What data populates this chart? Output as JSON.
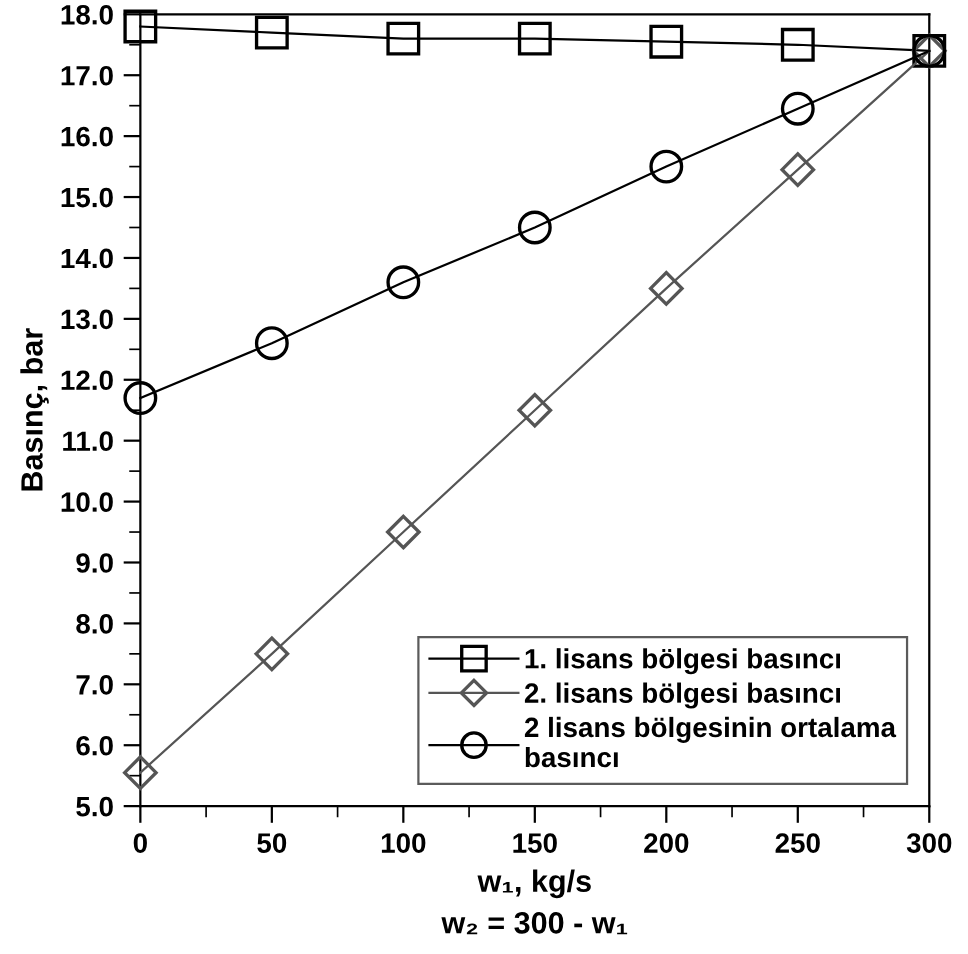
{
  "chart_data": {
    "type": "line",
    "xlabel": "w₁, kg/s",
    "ylabel": "Basınç, bar",
    "annotations": [
      "w₂ = 300 - w₁"
    ],
    "x": [
      0,
      50,
      100,
      150,
      200,
      250,
      300
    ],
    "xlim": [
      0,
      300
    ],
    "xticks": [
      0,
      50,
      100,
      150,
      200,
      250,
      300
    ],
    "ylim": [
      5.0,
      18.0
    ],
    "yticks": [
      {
        "value": 5,
        "label": "5.0"
      },
      {
        "value": 6,
        "label": "6.0"
      },
      {
        "value": 7,
        "label": "7.0"
      },
      {
        "value": 8,
        "label": "8.0"
      },
      {
        "value": 9,
        "label": "9.0"
      },
      {
        "value": 10,
        "label": "10.0"
      },
      {
        "value": 11,
        "label": "11.0"
      },
      {
        "value": 12,
        "label": "12.0"
      },
      {
        "value": 13,
        "label": "13.0"
      },
      {
        "value": 14,
        "label": "14.0"
      },
      {
        "value": 15,
        "label": "15.0"
      },
      {
        "value": 16,
        "label": "16.0"
      },
      {
        "value": 17,
        "label": "17.0"
      },
      {
        "value": 18,
        "label": "18.0"
      }
    ],
    "grid": false,
    "legend": "bottom right",
    "series": [
      {
        "name": "1. lisans bölgesi basıncı",
        "color": "#000000",
        "marker": "square",
        "values": [
          17.8,
          17.7,
          17.6,
          17.6,
          17.55,
          17.5,
          17.4
        ]
      },
      {
        "name": "2. lisans bölgesi basıncı",
        "color": "#555555",
        "marker": "diamond",
        "values": [
          5.55,
          7.5,
          9.5,
          11.5,
          13.5,
          15.45,
          17.4
        ]
      },
      {
        "name": "2 lisans bölgesinin ortalama\nbasıncı",
        "color": "#000000",
        "marker": "circle",
        "values": [
          11.7,
          12.6,
          13.6,
          14.5,
          15.5,
          16.45,
          17.4
        ]
      }
    ]
  }
}
